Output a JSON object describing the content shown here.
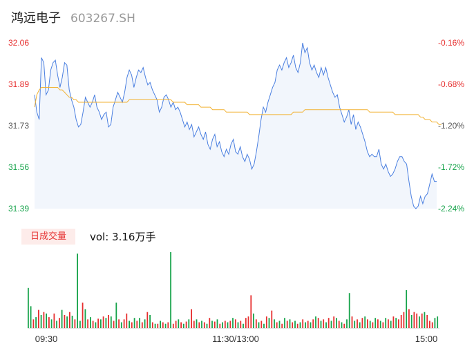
{
  "header": {
    "name": "鸿远电子",
    "code": "603267.SH"
  },
  "colors": {
    "up": "#e62e2e",
    "down": "#16a34a",
    "price_line": "#4a7fe0",
    "avg_line": "#f2b233",
    "area_fill": "#f2f6fc"
  },
  "volume_panel": {
    "tab_label": "日成交量",
    "vol_text": "vol: 3.16万手"
  },
  "chart_data": [
    {
      "type": "line",
      "title": "",
      "y_ticks_left": [
        "32.06",
        "31.89",
        "31.73",
        "31.56",
        "31.39"
      ],
      "y_ticks_right": [
        "-0.16%",
        "-0.68%",
        "-1.20%",
        "-1.72%",
        "-2.24%"
      ],
      "ylim": [
        31.39,
        32.06
      ],
      "x_ticks": [
        "09:30",
        "11:30/13:00",
        "15:00"
      ],
      "series": [
        {
          "values": [
            31.85,
            31.78,
            31.75,
            32.0,
            31.98,
            31.85,
            31.87,
            31.95,
            31.98,
            31.99,
            31.93,
            31.88,
            31.92,
            31.98,
            31.97,
            31.87,
            31.83,
            31.8,
            31.75,
            31.72,
            31.73,
            31.78,
            31.84,
            31.82,
            31.8,
            31.82,
            31.85,
            31.8,
            31.78,
            31.75,
            31.77,
            31.78,
            31.72,
            31.73,
            31.8,
            31.83,
            31.86,
            31.84,
            31.82,
            31.86,
            31.92,
            31.95,
            31.93,
            31.88,
            31.92,
            31.95,
            31.94,
            31.96,
            31.92,
            31.89,
            31.9,
            31.87,
            31.85,
            31.83,
            31.78,
            31.8,
            31.84,
            31.85,
            31.83,
            31.8,
            31.82,
            31.79,
            31.8,
            31.78,
            31.75,
            31.72,
            31.74,
            31.71,
            31.73,
            31.68,
            31.7,
            31.72,
            31.69,
            31.67,
            31.7,
            31.65,
            31.63,
            31.67,
            31.69,
            31.64,
            31.66,
            31.62,
            31.6,
            31.63,
            31.61,
            31.65,
            31.67,
            31.62,
            31.61,
            31.64,
            31.6,
            31.58,
            31.61,
            31.59,
            31.55,
            31.57,
            31.62,
            31.68,
            31.75,
            31.8,
            31.78,
            31.82,
            31.85,
            31.88,
            31.9,
            31.95,
            31.97,
            31.95,
            31.98,
            32.0,
            31.96,
            31.98,
            32.01,
            31.96,
            31.94,
            31.98,
            32.06,
            32.02,
            32.04,
            31.98,
            31.95,
            31.97,
            31.94,
            31.92,
            31.96,
            31.93,
            31.96,
            31.92,
            31.89,
            31.86,
            31.84,
            31.85,
            31.8,
            31.77,
            31.74,
            31.76,
            31.79,
            31.73,
            31.77,
            31.71,
            31.74,
            31.72,
            31.69,
            31.66,
            31.62,
            31.6,
            31.61,
            31.6,
            31.6,
            31.63,
            31.57,
            31.55,
            31.57,
            31.54,
            31.52,
            31.53,
            31.55,
            31.58,
            31.6,
            31.6,
            31.58,
            31.57,
            31.5,
            31.44,
            31.4,
            31.39,
            31.4,
            31.44,
            31.41,
            31.44,
            31.45,
            31.49,
            31.53,
            31.5,
            31.5
          ],
          "color": "#4a7fe0"
        },
        {
          "values": [
            31.8,
            31.85,
            31.87,
            31.88,
            31.88,
            31.88,
            31.88,
            31.88,
            31.88,
            31.88,
            31.88,
            31.87,
            31.87,
            31.86,
            31.85,
            31.84,
            31.84,
            31.83,
            31.83,
            31.82,
            31.82,
            31.82,
            31.82,
            31.82,
            31.82,
            31.82,
            31.82,
            31.82,
            31.82,
            31.82,
            31.82,
            31.82,
            31.82,
            31.82,
            31.82,
            31.82,
            31.82,
            31.82,
            31.82,
            31.82,
            31.82,
            31.83,
            31.83,
            31.83,
            31.83,
            31.83,
            31.83,
            31.83,
            31.83,
            31.83,
            31.83,
            31.83,
            31.83,
            31.83,
            31.83,
            31.83,
            31.83,
            31.83,
            31.83,
            31.83,
            31.82,
            31.82,
            31.82,
            31.82,
            31.82,
            31.82,
            31.81,
            31.81,
            31.81,
            31.81,
            31.81,
            31.81,
            31.8,
            31.8,
            31.8,
            31.8,
            31.8,
            31.79,
            31.79,
            31.79,
            31.79,
            31.79,
            31.79,
            31.78,
            31.78,
            31.78,
            31.78,
            31.78,
            31.78,
            31.78,
            31.78,
            31.78,
            31.78,
            31.77,
            31.77,
            31.77,
            31.77,
            31.77,
            31.77,
            31.77,
            31.77,
            31.77,
            31.77,
            31.77,
            31.77,
            31.77,
            31.77,
            31.77,
            31.77,
            31.77,
            31.77,
            31.77,
            31.78,
            31.78,
            31.78,
            31.78,
            31.78,
            31.79,
            31.79,
            31.79,
            31.79,
            31.79,
            31.79,
            31.79,
            31.79,
            31.79,
            31.79,
            31.79,
            31.79,
            31.79,
            31.79,
            31.79,
            31.79,
            31.79,
            31.79,
            31.79,
            31.79,
            31.79,
            31.79,
            31.79,
            31.79,
            31.79,
            31.79,
            31.79,
            31.79,
            31.78,
            31.78,
            31.78,
            31.78,
            31.78,
            31.78,
            31.78,
            31.78,
            31.78,
            31.78,
            31.78,
            31.77,
            31.77,
            31.77,
            31.77,
            31.77,
            31.77,
            31.77,
            31.77,
            31.77,
            31.77,
            31.77,
            31.76,
            31.76,
            31.75,
            31.75,
            31.75,
            31.74,
            31.74,
            31.74,
            31.73,
            31.73
          ],
          "color": "#f2b233"
        }
      ]
    },
    {
      "type": "bar",
      "title": "",
      "values": [
        55,
        30,
        12,
        15,
        25,
        18,
        22,
        20,
        15,
        12,
        20,
        10,
        14,
        25,
        18,
        16,
        22,
        17,
        12,
        102,
        10,
        35,
        26,
        12,
        15,
        10,
        8,
        13,
        12,
        16,
        14,
        18,
        16,
        10,
        35,
        12,
        8,
        12,
        20,
        10,
        8,
        14,
        10,
        14,
        8,
        12,
        22,
        18,
        8,
        6,
        6,
        10,
        8,
        6,
        8,
        104,
        6,
        10,
        12,
        8,
        6,
        9,
        12,
        26,
        10,
        12,
        8,
        10,
        8,
        6,
        14,
        10,
        9,
        12,
        6,
        8,
        10,
        8,
        10,
        14,
        12,
        8,
        10,
        6,
        14,
        16,
        45,
        20,
        12,
        8,
        10,
        6,
        16,
        14,
        24,
        12,
        8,
        10,
        6,
        14,
        10,
        12,
        8,
        10,
        6,
        8,
        12,
        8,
        10,
        8,
        12,
        16,
        14,
        10,
        12,
        8,
        14,
        10,
        16,
        14,
        10,
        8,
        6,
        12,
        48,
        16,
        10,
        12,
        8,
        14,
        16,
        12,
        10,
        8,
        14,
        12,
        10,
        8,
        14,
        12,
        10,
        16,
        14,
        12,
        18,
        22,
        52,
        26,
        18,
        22,
        20,
        16,
        20,
        22,
        18,
        10,
        8,
        14,
        16
      ],
      "bar_colors": [
        "down",
        "down",
        "up",
        "down",
        "up",
        "down",
        "up",
        "down",
        "up",
        "down",
        "up",
        "down",
        "up",
        "down",
        "up",
        "down",
        "up",
        "down",
        "up",
        "down",
        "down",
        "up",
        "down",
        "up",
        "down",
        "up",
        "down",
        "up",
        "down",
        "up",
        "down",
        "up",
        "down",
        "up",
        "down",
        "up",
        "down",
        "up",
        "up",
        "down",
        "up",
        "down",
        "up",
        "down",
        "up",
        "down",
        "up",
        "down",
        "up",
        "down",
        "up",
        "down",
        "up",
        "down",
        "up",
        "down",
        "up",
        "up",
        "down",
        "up",
        "down",
        "up",
        "down",
        "up",
        "up",
        "down",
        "up",
        "down",
        "up",
        "down",
        "up",
        "down",
        "up",
        "down",
        "up",
        "down",
        "up",
        "down",
        "up",
        "down",
        "up",
        "down",
        "up",
        "down",
        "up",
        "up",
        "up",
        "down",
        "up",
        "down",
        "up",
        "down",
        "up",
        "down",
        "up",
        "down",
        "up",
        "down",
        "up",
        "down",
        "up",
        "down",
        "up",
        "down",
        "up",
        "down",
        "up",
        "down",
        "up",
        "down",
        "up",
        "down",
        "up",
        "down",
        "up",
        "down",
        "up",
        "down",
        "up",
        "down",
        "up",
        "down",
        "up",
        "down",
        "down",
        "up",
        "down",
        "up",
        "down",
        "up",
        "down",
        "up",
        "down",
        "up",
        "down",
        "up",
        "down",
        "up",
        "down",
        "up",
        "down",
        "up",
        "down",
        "up",
        "up",
        "up",
        "down",
        "up",
        "down",
        "up",
        "up",
        "down",
        "up",
        "down",
        "up",
        "up",
        "up",
        "down",
        "down"
      ]
    }
  ]
}
